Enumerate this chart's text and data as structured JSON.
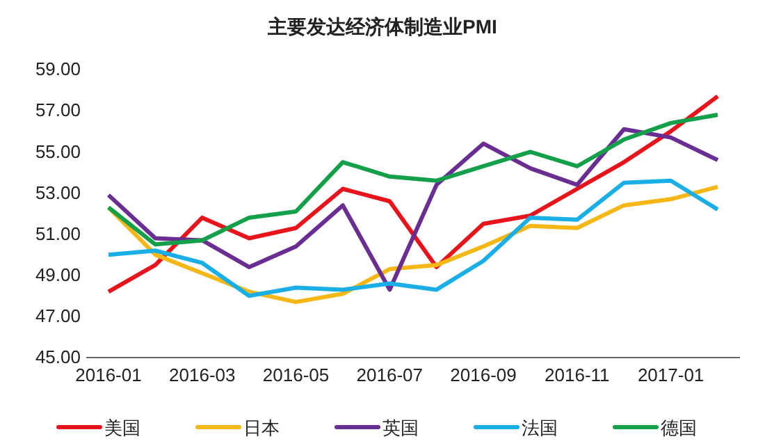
{
  "chart_data": {
    "type": "line",
    "title": "主要发达经济体制造业PMI",
    "categories": [
      "2016-01",
      null,
      "2016-03",
      null,
      "2016-05",
      null,
      "2016-07",
      null,
      "2016-09",
      null,
      "2016-11",
      null,
      "2017-01",
      null
    ],
    "series": [
      {
        "name": "美国",
        "color": "#e8141b",
        "values": [
          48.2,
          49.5,
          51.8,
          50.8,
          51.3,
          53.2,
          52.6,
          49.4,
          51.5,
          51.9,
          53.2,
          54.5,
          56.0,
          57.7
        ]
      },
      {
        "name": "日本",
        "color": "#f5b715",
        "values": [
          52.3,
          50.0,
          49.1,
          48.2,
          47.7,
          48.1,
          49.3,
          49.5,
          50.4,
          51.4,
          51.3,
          52.4,
          52.7,
          53.3
        ]
      },
      {
        "name": "英国",
        "color": "#6a2d91",
        "values": [
          52.9,
          50.8,
          50.7,
          49.4,
          50.4,
          52.4,
          48.3,
          53.4,
          55.4,
          54.2,
          53.4,
          56.1,
          55.7,
          54.6
        ]
      },
      {
        "name": "法国",
        "color": "#1aaee6",
        "values": [
          50.0,
          50.2,
          49.6,
          48.0,
          48.4,
          48.3,
          48.6,
          48.3,
          49.7,
          51.8,
          51.7,
          53.5,
          53.6,
          52.2
        ]
      },
      {
        "name": "德国",
        "color": "#14a04a",
        "values": [
          52.3,
          50.5,
          50.7,
          51.8,
          52.1,
          54.5,
          53.8,
          53.6,
          54.3,
          55.0,
          54.3,
          55.6,
          56.4,
          56.8
        ]
      }
    ],
    "ylim": [
      45,
      59
    ],
    "yticks": [
      {
        "value": 45,
        "label": "45.00"
      },
      {
        "value": 47,
        "label": "47.00"
      },
      {
        "value": 49,
        "label": "49.00"
      },
      {
        "value": 51,
        "label": "51.00"
      },
      {
        "value": 53,
        "label": "53.00"
      },
      {
        "value": 55,
        "label": "55.00"
      },
      {
        "value": 57,
        "label": "57.00"
      },
      {
        "value": 59,
        "label": "59.00"
      }
    ],
    "legend": "bottom",
    "marker": "none",
    "line_style": "solid"
  }
}
